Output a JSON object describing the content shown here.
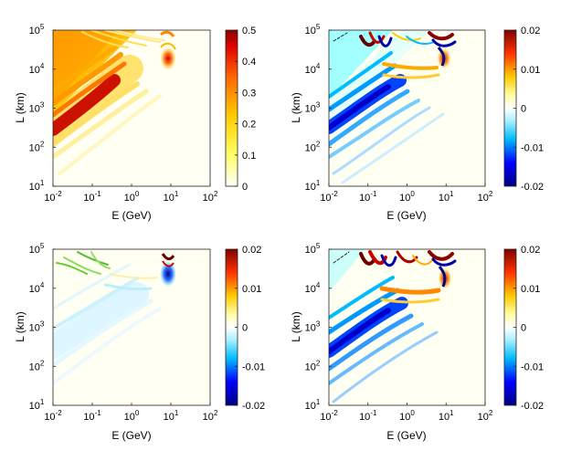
{
  "chart_data": [
    {
      "type": "heatmap",
      "id": "top-left",
      "xlabel": "E   (GeV)",
      "ylabel": "L   (km)",
      "x_scale": "log",
      "y_scale": "log",
      "xlim": [
        0.01,
        100
      ],
      "ylim": [
        10,
        100000
      ],
      "x_ticks": [
        {
          "base": "10",
          "exp": "-2"
        },
        {
          "base": "10",
          "exp": "-1"
        },
        {
          "base": "10",
          "exp": "0"
        },
        {
          "base": "10",
          "exp": "1"
        },
        {
          "base": "10",
          "exp": "2"
        }
      ],
      "y_ticks": [
        {
          "base": "10",
          "exp": "1"
        },
        {
          "base": "10",
          "exp": "2"
        },
        {
          "base": "10",
          "exp": "3"
        },
        {
          "base": "10",
          "exp": "4"
        },
        {
          "base": "10",
          "exp": "5"
        }
      ],
      "colorbar": {
        "range": [
          0,
          0.5
        ],
        "colormap": "hot-white",
        "ticks": [
          "0.5",
          "0.4",
          "0.3",
          "0.2",
          "0.1",
          "0"
        ]
      },
      "features": [
        "oscillation bands along L/E diagonal, max ~0.5",
        "resonance near E≈10 GeV, L≈10^4 km"
      ]
    },
    {
      "type": "heatmap",
      "id": "top-right",
      "xlabel": "E   (GeV)",
      "ylabel": "L   (km)",
      "x_scale": "log",
      "y_scale": "log",
      "xlim": [
        0.01,
        100
      ],
      "ylim": [
        10,
        100000
      ],
      "x_ticks": [
        {
          "base": "10",
          "exp": "-2"
        },
        {
          "base": "10",
          "exp": "-1"
        },
        {
          "base": "10",
          "exp": "0"
        },
        {
          "base": "10",
          "exp": "1"
        },
        {
          "base": "10",
          "exp": "2"
        }
      ],
      "y_ticks": [
        {
          "base": "10",
          "exp": "1"
        },
        {
          "base": "10",
          "exp": "2"
        },
        {
          "base": "10",
          "exp": "3"
        },
        {
          "base": "10",
          "exp": "4"
        },
        {
          "base": "10",
          "exp": "5"
        }
      ],
      "colorbar": {
        "range": [
          -0.02,
          0.02
        ],
        "colormap": "jet-diverging",
        "ticks": [
          "0.02",
          "0.01",
          "0",
          "-0.01",
          "-0.02"
        ]
      },
      "features": [
        "blue diagonal bands ~-0.015",
        "red band near E≈10 GeV, L≈10^4 km"
      ]
    },
    {
      "type": "heatmap",
      "id": "bottom-left",
      "xlabel": "E   (GeV)",
      "ylabel": "L   (km)",
      "x_scale": "log",
      "y_scale": "log",
      "xlim": [
        0.01,
        100
      ],
      "ylim": [
        10,
        100000
      ],
      "x_ticks": [
        {
          "base": "10",
          "exp": "-2"
        },
        {
          "base": "10",
          "exp": "-1"
        },
        {
          "base": "10",
          "exp": "0"
        },
        {
          "base": "10",
          "exp": "1"
        },
        {
          "base": "10",
          "exp": "2"
        }
      ],
      "y_ticks": [
        {
          "base": "10",
          "exp": "1"
        },
        {
          "base": "10",
          "exp": "2"
        },
        {
          "base": "10",
          "exp": "3"
        },
        {
          "base": "10",
          "exp": "4"
        },
        {
          "base": "10",
          "exp": "5"
        }
      ],
      "colorbar": {
        "range": [
          -0.02,
          0.02
        ],
        "colormap": "jet-diverging",
        "ticks": [
          "0.02",
          "0.01",
          "0",
          "-0.01",
          "-0.02"
        ]
      },
      "features": [
        "weak light-blue diagonal bands",
        "dark blue/red resonance near E≈10 GeV, L≈10^4.5 km"
      ]
    },
    {
      "type": "heatmap",
      "id": "bottom-right",
      "xlabel": "E   (GeV)",
      "ylabel": "L   (km)",
      "x_scale": "log",
      "y_scale": "log",
      "xlim": [
        0.01,
        100
      ],
      "ylim": [
        10,
        100000
      ],
      "x_ticks": [
        {
          "base": "10",
          "exp": "-2"
        },
        {
          "base": "10",
          "exp": "-1"
        },
        {
          "base": "10",
          "exp": "0"
        },
        {
          "base": "10",
          "exp": "1"
        },
        {
          "base": "10",
          "exp": "2"
        }
      ],
      "y_ticks": [
        {
          "base": "10",
          "exp": "1"
        },
        {
          "base": "10",
          "exp": "2"
        },
        {
          "base": "10",
          "exp": "3"
        },
        {
          "base": "10",
          "exp": "4"
        },
        {
          "base": "10",
          "exp": "5"
        }
      ],
      "colorbar": {
        "range": [
          -0.02,
          0.02
        ],
        "colormap": "jet-diverging",
        "ticks": [
          "0.02",
          "0.01",
          "0",
          "-0.01",
          "-0.02"
        ]
      },
      "features": [
        "strong blue diagonal bands",
        "red bands near E≈1–10 GeV, L≈10^4 km"
      ]
    }
  ]
}
